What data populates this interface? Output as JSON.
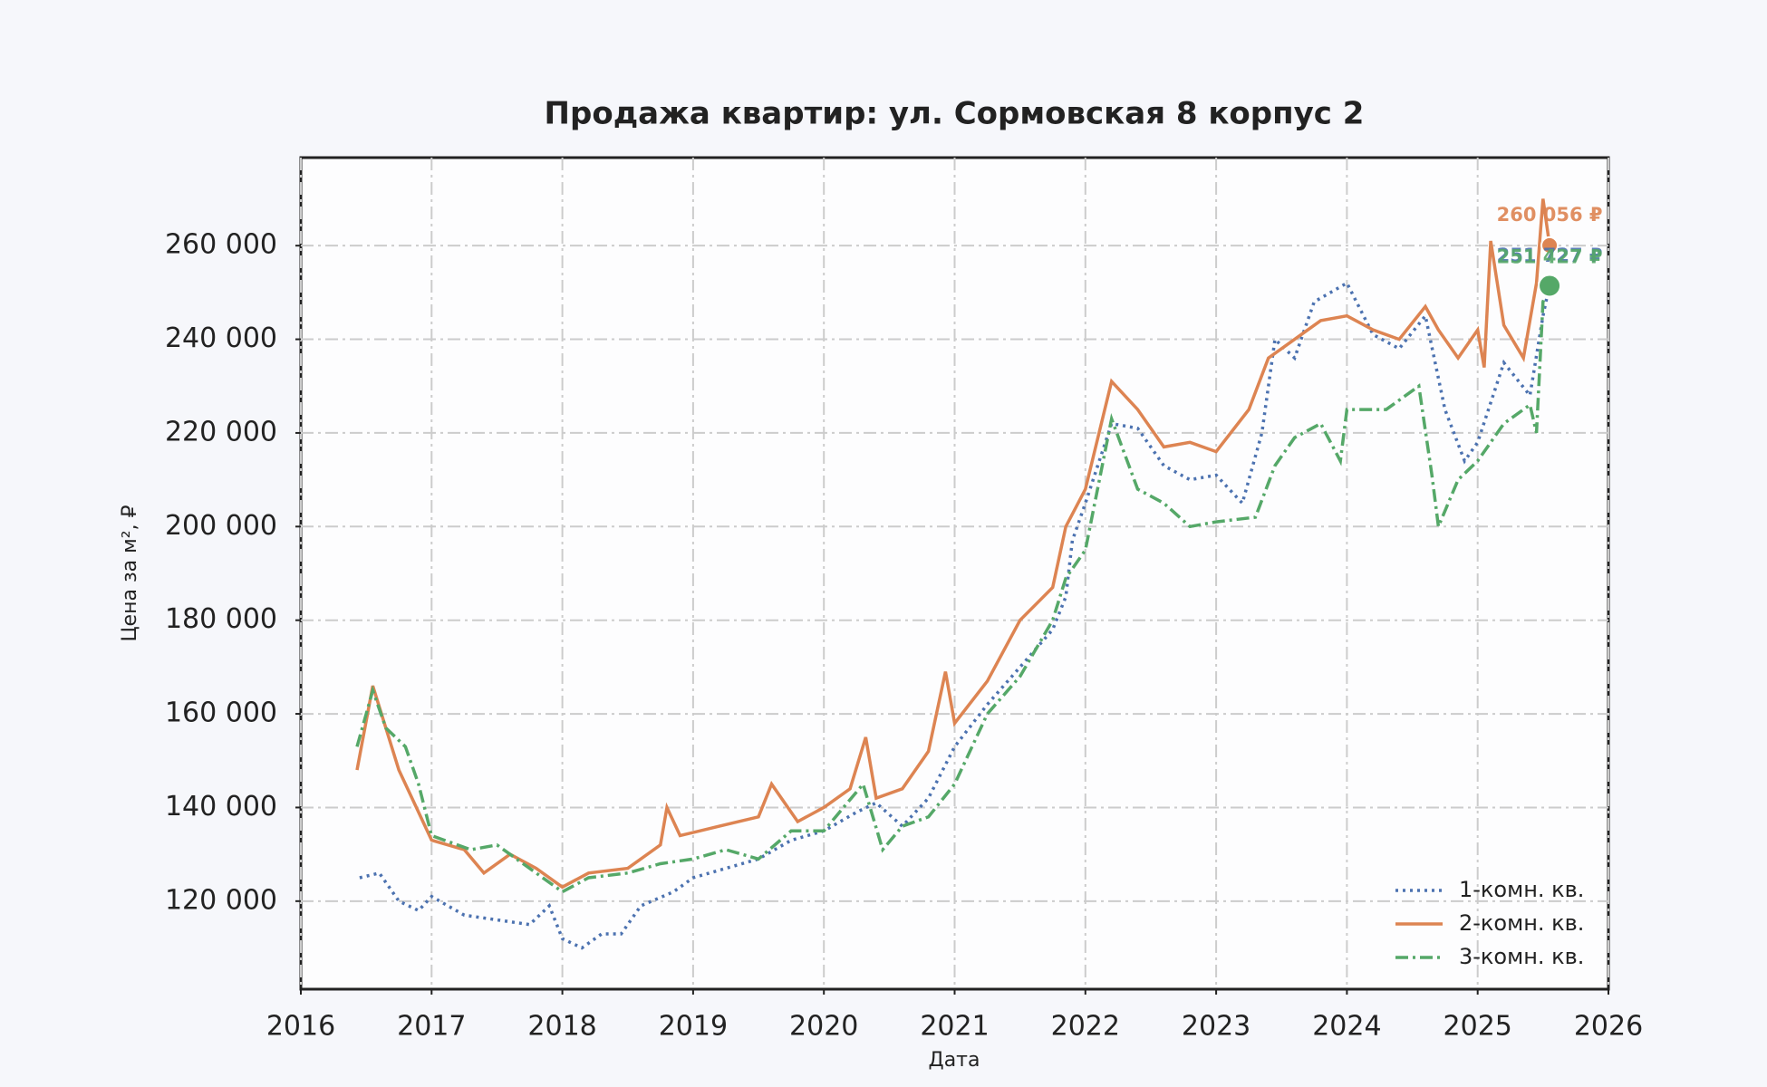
{
  "chart_data": {
    "type": "line",
    "title": "Продажа квартир: ул. Сормовская 8 корпус 2",
    "x_label": "Дата",
    "y_label": "Цена за м², ₽",
    "xlim": [
      2016,
      2026
    ],
    "xticks": [
      2016,
      2017,
      2018,
      2019,
      2020,
      2021,
      2022,
      2023,
      2024,
      2025,
      2026
    ],
    "ylim": [
      101200,
      278800
    ],
    "yticks": [
      {
        "value": 120000,
        "label": "120 000"
      },
      {
        "value": 140000,
        "label": "140 000"
      },
      {
        "value": 160000,
        "label": "160 000"
      },
      {
        "value": 180000,
        "label": "180 000"
      },
      {
        "value": 200000,
        "label": "200 000"
      },
      {
        "value": 220000,
        "label": "220 000"
      },
      {
        "value": 240000,
        "label": "240 000"
      },
      {
        "value": 260000,
        "label": "260 000"
      }
    ],
    "grid": true,
    "legend": "lower right",
    "series": [
      {
        "name": "1-комн. кв.",
        "color": "#4c72b0",
        "linestyle": "dotted",
        "x": [
          2016.45,
          2016.6,
          2016.75,
          2016.9,
          2017.0,
          2017.25,
          2017.5,
          2017.75,
          2017.9,
          2018.0,
          2018.15,
          2018.3,
          2018.45,
          2018.6,
          2018.85,
          2019.0,
          2019.25,
          2019.5,
          2019.75,
          2020.0,
          2020.25,
          2020.4,
          2020.6,
          2020.8,
          2021.0,
          2021.25,
          2021.5,
          2021.75,
          2021.85,
          2021.9,
          2022.0,
          2022.2,
          2022.4,
          2022.6,
          2022.8,
          2023.0,
          2023.2,
          2023.35,
          2023.45,
          2023.6,
          2023.75,
          2024.0,
          2024.2,
          2024.4,
          2024.6,
          2024.75,
          2024.9,
          2025.0,
          2025.2,
          2025.4,
          2025.5,
          2025.55
        ],
        "values": [
          125000,
          126000,
          120000,
          118000,
          121000,
          117000,
          116000,
          115000,
          119000,
          112000,
          110000,
          113000,
          113000,
          119000,
          122000,
          125000,
          127000,
          129000,
          133000,
          135000,
          139000,
          141000,
          136000,
          142000,
          153000,
          162000,
          170000,
          178000,
          185000,
          197000,
          205000,
          222000,
          221000,
          213000,
          210000,
          211000,
          205000,
          220000,
          240000,
          236000,
          248000,
          252000,
          241000,
          238000,
          245000,
          225000,
          214000,
          218000,
          235000,
          228000,
          245000,
          251727
        ]
      },
      {
        "name": "2-комн. кв.",
        "color": "#dd8452",
        "linestyle": "solid",
        "x": [
          2016.43,
          2016.55,
          2016.65,
          2016.75,
          2016.9,
          2017.0,
          2017.25,
          2017.4,
          2017.6,
          2017.8,
          2018.0,
          2018.2,
          2018.5,
          2018.75,
          2018.8,
          2018.9,
          2019.2,
          2019.5,
          2019.6,
          2019.8,
          2020.0,
          2020.2,
          2020.32,
          2020.4,
          2020.6,
          2020.8,
          2020.93,
          2021.0,
          2021.25,
          2021.5,
          2021.75,
          2021.85,
          2022.0,
          2022.2,
          2022.4,
          2022.6,
          2022.8,
          2023.0,
          2023.25,
          2023.4,
          2023.6,
          2023.8,
          2024.0,
          2024.2,
          2024.4,
          2024.6,
          2024.7,
          2024.85,
          2025.0,
          2025.05,
          2025.1,
          2025.2,
          2025.35,
          2025.45,
          2025.5,
          2025.55
        ],
        "values": [
          148000,
          166000,
          157000,
          148000,
          139000,
          133000,
          131000,
          126000,
          130000,
          127000,
          123000,
          126000,
          127000,
          132000,
          140000,
          134000,
          136000,
          138000,
          145000,
          137000,
          140000,
          144000,
          155000,
          142000,
          144000,
          152000,
          169000,
          158000,
          167000,
          180000,
          187000,
          200000,
          208000,
          231000,
          225000,
          217000,
          218000,
          216000,
          225000,
          236000,
          240000,
          244000,
          245000,
          242000,
          240000,
          247000,
          242000,
          236000,
          242000,
          234000,
          261000,
          243000,
          236000,
          252000,
          270000,
          260056
        ]
      },
      {
        "name": "3-комн. кв.",
        "color": "#55a868",
        "linestyle": "dashdot",
        "x": [
          2016.43,
          2016.55,
          2016.65,
          2016.8,
          2016.9,
          2017.0,
          2017.3,
          2017.5,
          2017.7,
          2018.0,
          2018.2,
          2018.5,
          2018.75,
          2019.0,
          2019.25,
          2019.5,
          2019.75,
          2020.0,
          2020.3,
          2020.45,
          2020.6,
          2020.8,
          2021.0,
          2021.25,
          2021.5,
          2021.75,
          2021.85,
          2022.0,
          2022.2,
          2022.4,
          2022.6,
          2022.8,
          2023.0,
          2023.3,
          2023.45,
          2023.6,
          2023.8,
          2023.95,
          2024.0,
          2024.3,
          2024.55,
          2024.65,
          2024.7,
          2024.85,
          2025.0,
          2025.2,
          2025.4,
          2025.45,
          2025.5,
          2025.55
        ],
        "values": [
          153000,
          165000,
          157000,
          153000,
          145000,
          134000,
          131000,
          132000,
          128000,
          122000,
          125000,
          126000,
          128000,
          129000,
          131000,
          129000,
          135000,
          135000,
          145000,
          131000,
          136000,
          138000,
          145000,
          160000,
          168000,
          180000,
          189000,
          195000,
          223000,
          208000,
          205000,
          200000,
          201000,
          202000,
          213000,
          219000,
          222000,
          214000,
          225000,
          225000,
          230000,
          211000,
          200000,
          210000,
          214000,
          222000,
          226000,
          220000,
          248000,
          251427
        ]
      }
    ],
    "annotations": [
      {
        "x": 2025.55,
        "y": 260056,
        "label": "260 056 ₽",
        "color": "#dd8452"
      },
      {
        "x": 2025.55,
        "y": 251727,
        "label": "251 727 ₽",
        "color": "#4c72b0"
      },
      {
        "x": 2025.55,
        "y": 251427,
        "label": "251 427 ₽",
        "color": "#55a868"
      }
    ]
  }
}
